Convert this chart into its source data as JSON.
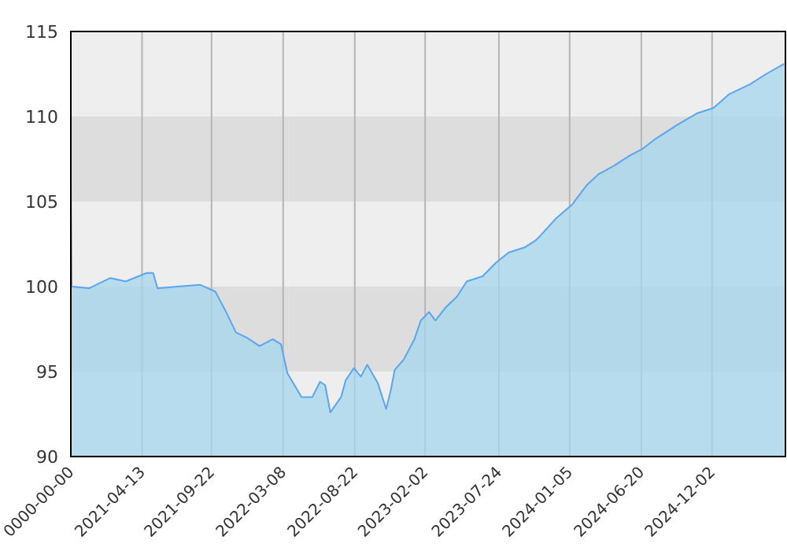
{
  "chart_data": {
    "type": "area",
    "xlim": [
      "2020-10-29",
      "2025-05-22"
    ],
    "ylim": [
      90,
      115
    ],
    "yticks": [
      90,
      95,
      100,
      105,
      110,
      115
    ],
    "xticks": [
      {
        "value": "2020-10-29",
        "label": "0000-00-00"
      },
      "2021-04-13",
      "2021-09-22",
      "2022-03-08",
      "2022-08-22",
      "2023-02-02",
      "2023-07-24",
      "2024-01-05",
      "2024-06-20",
      "2024-12-02"
    ],
    "grid": "x",
    "bands": [
      {
        "axis": "y",
        "from": 95,
        "to": 100,
        "color": "#dddddd"
      },
      {
        "axis": "y",
        "from": 105,
        "to": 110,
        "color": "#dddddd"
      }
    ],
    "series": [
      {
        "color": "#5aa5f0",
        "x": [
          "2020-10-29",
          "2020-10-31",
          "2020-12-11",
          "2021-01-29",
          "2021-03-06",
          "2021-04-24",
          "2021-05-09",
          "2021-05-19",
          "2021-07-06",
          "2021-08-27",
          "2021-10-01",
          "2021-10-26",
          "2021-11-18",
          "2021-12-13",
          "2022-01-12",
          "2022-02-12",
          "2022-03-03",
          "2022-03-18",
          "2022-04-20",
          "2022-05-15",
          "2022-06-02",
          "2022-06-14",
          "2022-06-26",
          "2022-07-21",
          "2022-08-01",
          "2022-08-20",
          "2022-09-05",
          "2022-09-20",
          "2022-10-15",
          "2022-11-03",
          "2022-11-14",
          "2022-11-23",
          "2022-12-14",
          "2023-01-08",
          "2023-01-23",
          "2023-02-11",
          "2023-02-26",
          "2023-03-23",
          "2023-04-17",
          "2023-05-10",
          "2023-06-16",
          "2023-07-17",
          "2023-08-16",
          "2023-09-22",
          "2023-10-17",
          "2023-10-29",
          "2023-12-04",
          "2024-01-10",
          "2024-02-15",
          "2024-03-12",
          "2024-04-17",
          "2024-05-24",
          "2024-06-23",
          "2024-07-24",
          "2024-09-11",
          "2024-10-29",
          "2024-12-05",
          "2025-01-10",
          "2025-03-01",
          "2025-04-07",
          "2025-05-19"
        ],
        "values": [
          105.9,
          100.0,
          99.9,
          100.5,
          100.3,
          100.8,
          100.8,
          99.9,
          100.0,
          100.1,
          99.7,
          98.5,
          97.3,
          97.0,
          96.5,
          96.9,
          96.6,
          94.9,
          93.5,
          93.5,
          94.4,
          94.2,
          92.6,
          93.5,
          94.5,
          95.2,
          94.7,
          95.4,
          94.3,
          92.8,
          93.9,
          95.1,
          95.7,
          96.9,
          98.0,
          98.5,
          98.0,
          98.8,
          99.4,
          100.3,
          100.6,
          101.4,
          102.0,
          102.3,
          102.7,
          103.0,
          104.0,
          104.8,
          106.0,
          106.6,
          107.1,
          107.7,
          108.1,
          108.7,
          109.5,
          110.2,
          110.5,
          111.3,
          111.9,
          112.5,
          113.1
        ]
      }
    ]
  }
}
